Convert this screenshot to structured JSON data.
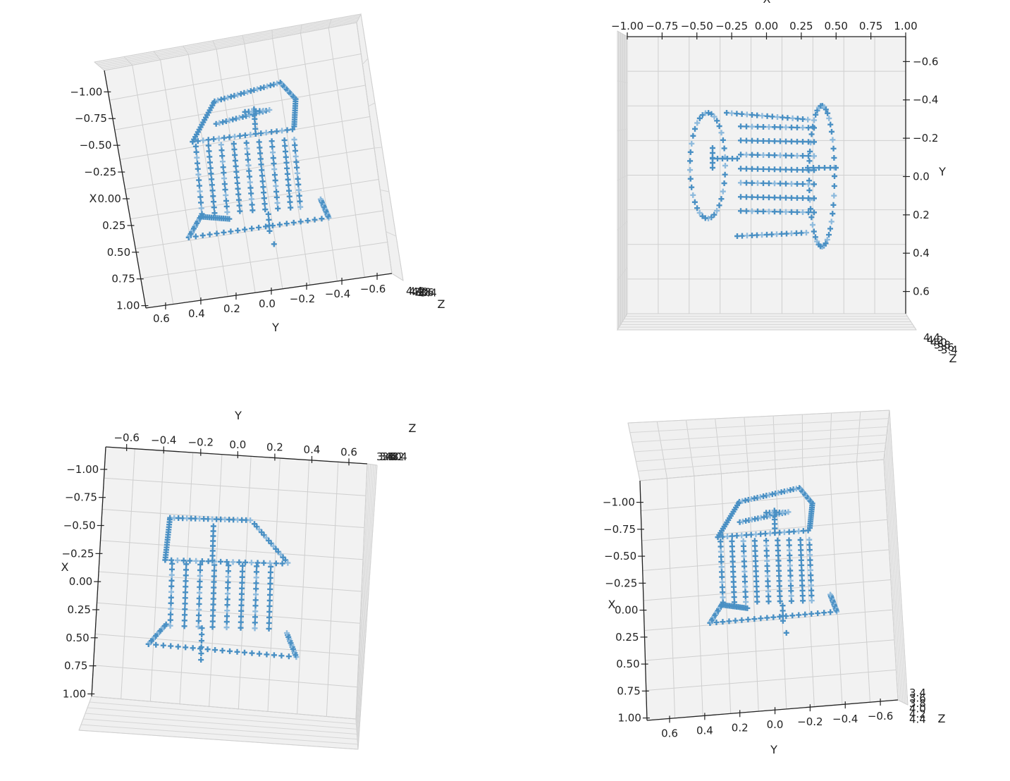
{
  "chart_data": [
    {
      "type": "scatter",
      "projection": "3d",
      "view": "top-left",
      "x_axis": {
        "label": "X",
        "ticks": [
          "−1.00",
          "−0.75",
          "−0.50",
          "−0.25",
          "0.00",
          "0.25",
          "0.50",
          "0.75",
          "1.00"
        ],
        "range": [
          -1.0,
          1.0
        ]
      },
      "y_axis": {
        "label": "Y",
        "ticks": [
          "0.6",
          "0.4",
          "0.2",
          "0.0",
          "−0.2",
          "−0.4",
          "−0.6"
        ],
        "range": [
          0.7,
          -0.7
        ]
      },
      "z_axis": {
        "label": "Z",
        "ticks": [
          "4.4",
          "4.2",
          "4.0",
          "3.8",
          "3.6",
          "3.4"
        ],
        "range": [
          4.4,
          3.4
        ]
      },
      "marker": "+",
      "color": "#4a90c4"
    },
    {
      "type": "scatter",
      "projection": "3d",
      "view": "top-right",
      "x_axis": {
        "label": "X",
        "ticks": [
          "−1.00",
          "−0.75",
          "−0.50",
          "−0.25",
          "0.00",
          "0.25",
          "0.50",
          "0.75",
          "1.00"
        ],
        "range": [
          -1.0,
          1.0
        ]
      },
      "y_axis": {
        "label": "Y",
        "ticks": [
          "−0.6",
          "−0.4",
          "−0.2",
          "0.0",
          "0.2",
          "0.4",
          "0.6"
        ],
        "range": [
          -0.7,
          0.7
        ]
      },
      "z_axis": {
        "label": "Z",
        "ticks": [
          "4.4",
          "4.2",
          "4.0",
          "3.8",
          "3.6",
          "3.4"
        ],
        "range": [
          4.4,
          3.4
        ]
      },
      "marker": "+",
      "color": "#4a90c4"
    },
    {
      "type": "scatter",
      "projection": "3d",
      "view": "bottom-left",
      "x_axis": {
        "label": "X",
        "ticks": [
          "−1.00",
          "−0.75",
          "−0.50",
          "−0.25",
          "0.00",
          "0.25",
          "0.50",
          "0.75",
          "1.00"
        ],
        "range": [
          -1.0,
          1.0
        ]
      },
      "y_axis": {
        "label": "Y",
        "ticks": [
          "−0.6",
          "−0.4",
          "−0.2",
          "0.0",
          "0.2",
          "0.4",
          "0.6"
        ],
        "range": [
          -0.7,
          0.7
        ]
      },
      "z_axis": {
        "label": "Z",
        "ticks": [
          "3.4",
          "3.6",
          "3.8",
          "4.0",
          "4.2",
          "4.4"
        ],
        "range": [
          3.4,
          4.4
        ]
      },
      "marker": "+",
      "color": "#4a90c4"
    },
    {
      "type": "scatter",
      "projection": "3d",
      "view": "bottom-right",
      "x_axis": {
        "label": "X",
        "ticks": [
          "−1.00",
          "−0.75",
          "−0.50",
          "−0.25",
          "0.00",
          "0.25",
          "0.50",
          "0.75",
          "1.00"
        ],
        "range": [
          -1.0,
          1.0
        ]
      },
      "y_axis": {
        "label": "Y",
        "ticks": [
          "0.6",
          "0.4",
          "0.2",
          "0.0",
          "−0.2",
          "−0.4",
          "−0.6"
        ],
        "range": [
          0.7,
          -0.7
        ]
      },
      "z_axis": {
        "label": "Z",
        "ticks": [
          "3.4",
          "3.6",
          "3.8",
          "4.0",
          "4.2",
          "4.4"
        ],
        "range": [
          3.4,
          4.4
        ]
      },
      "marker": "+",
      "color": "#4a90c4"
    }
  ]
}
